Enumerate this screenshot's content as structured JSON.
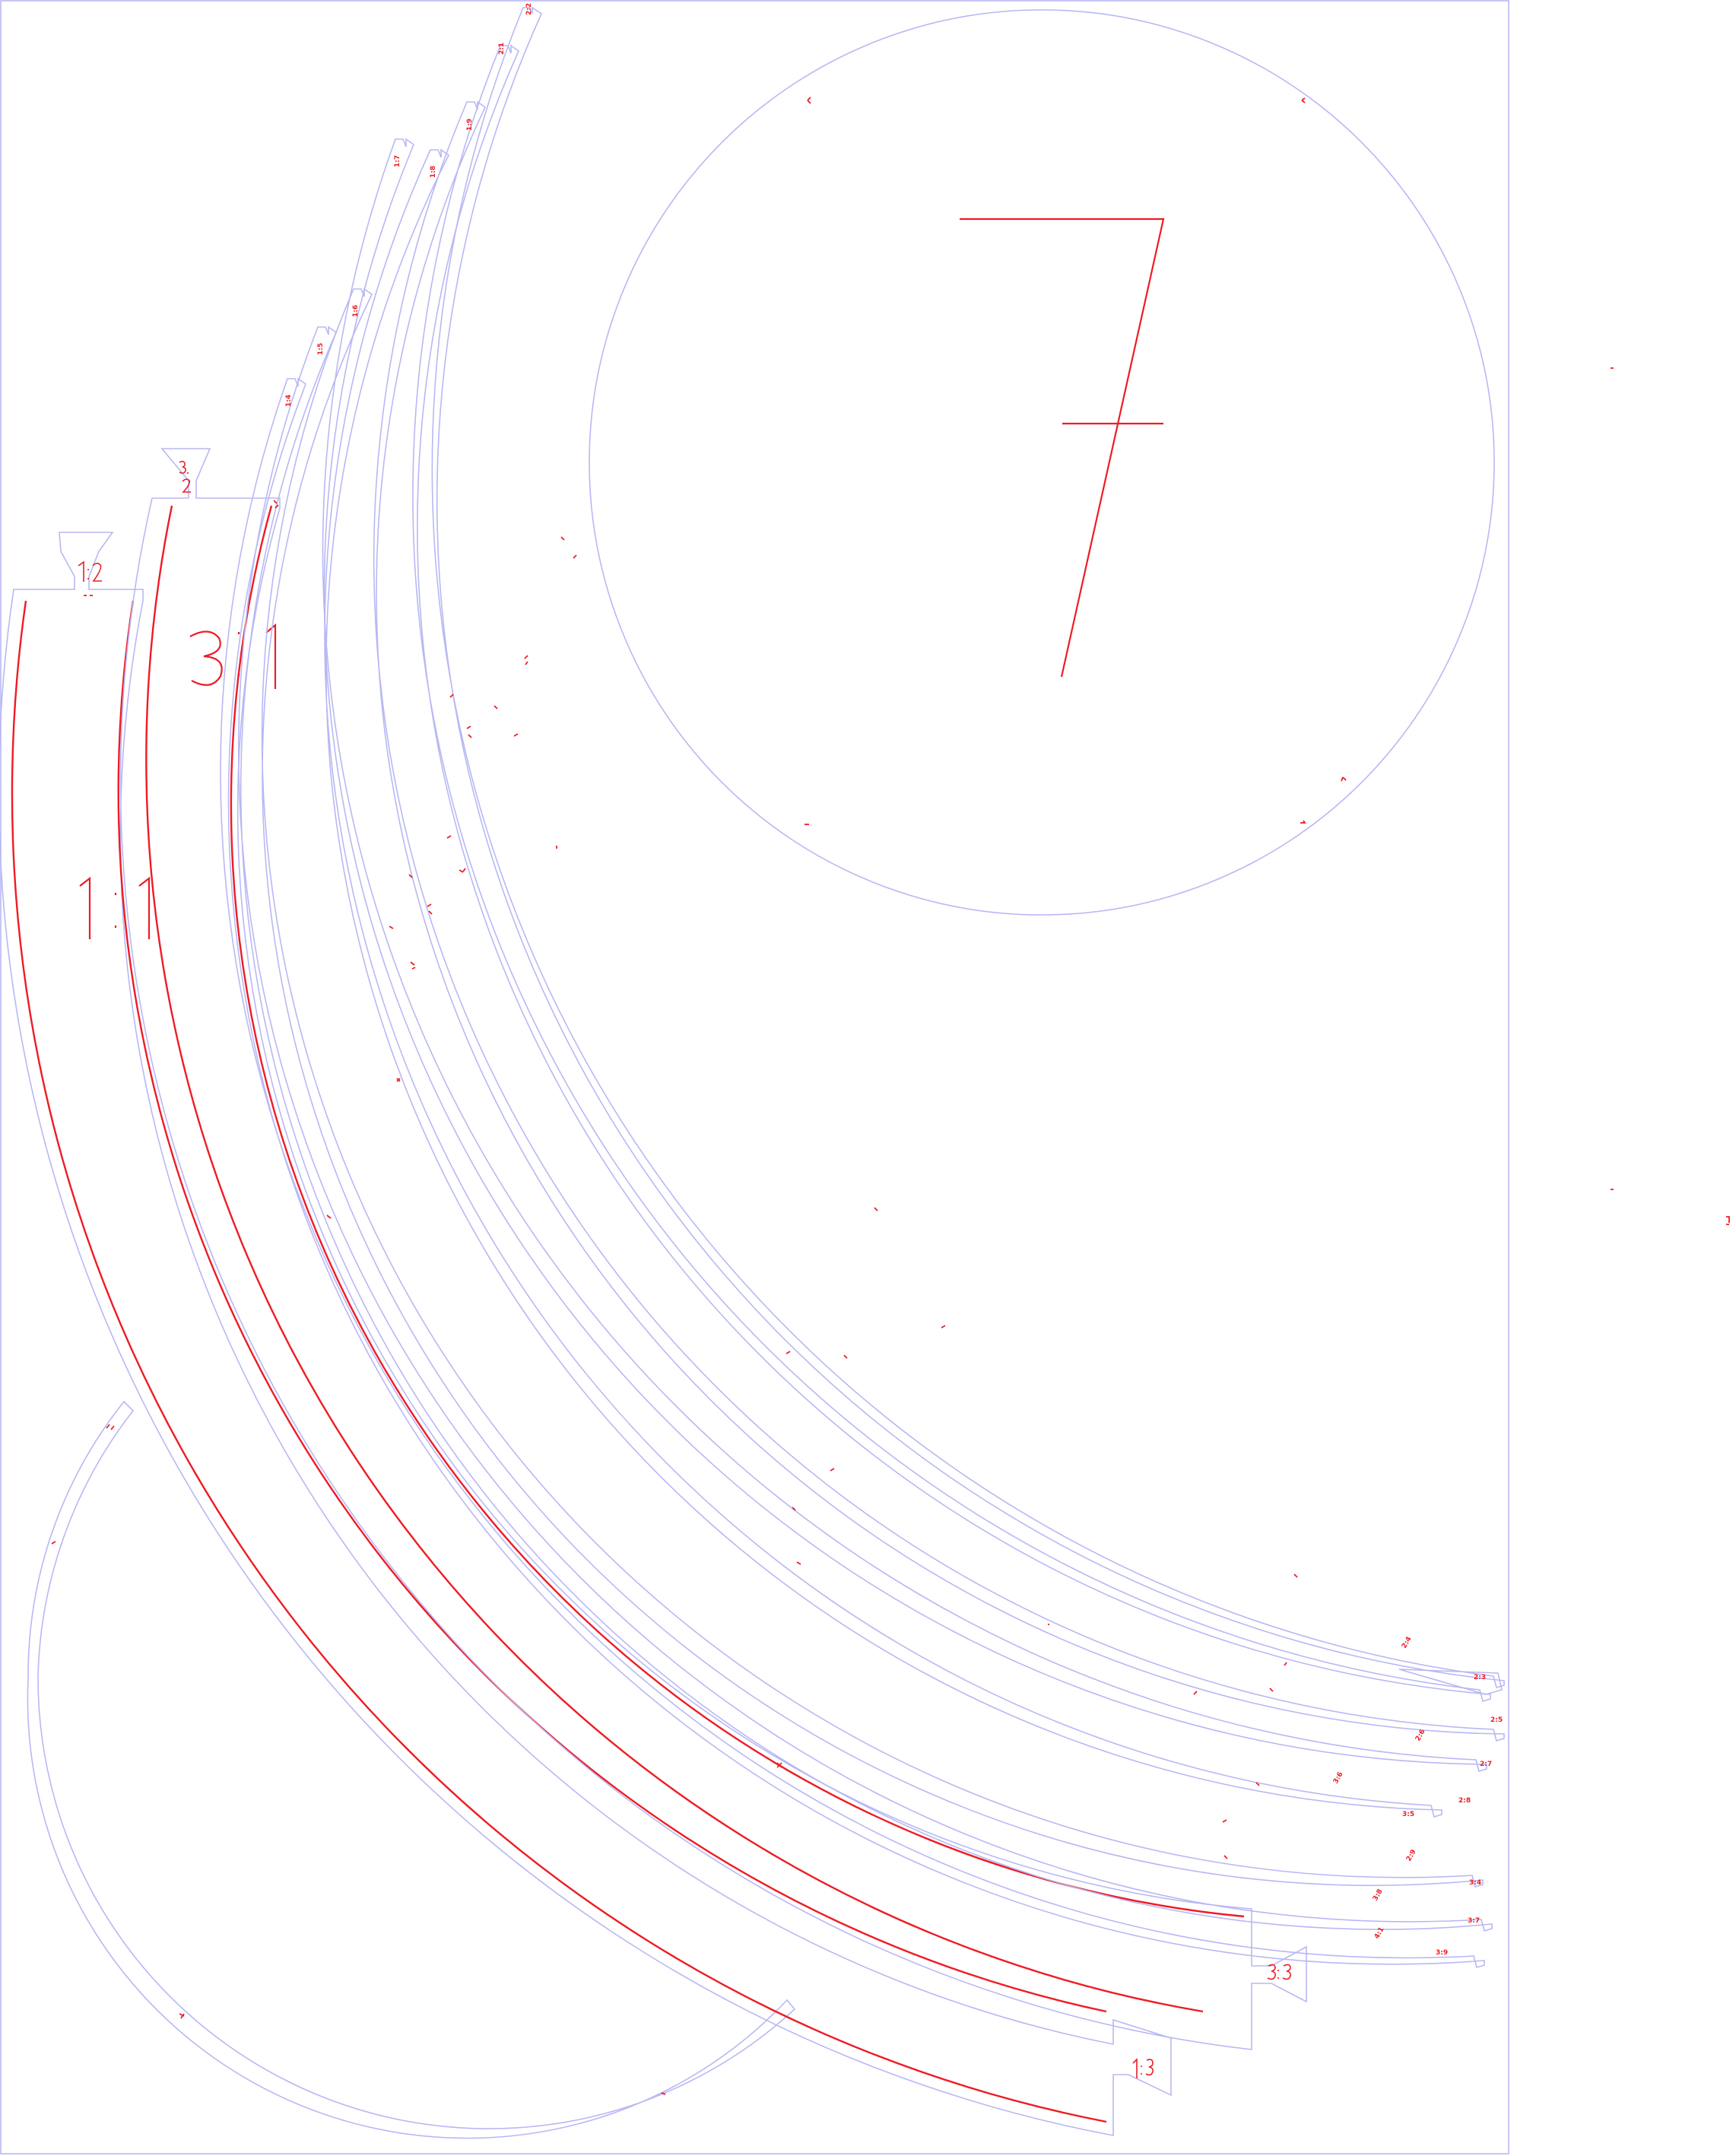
{
  "labels": {
    "ratio_1_1": "1:1",
    "ratio_3_1": "3:1",
    "ratio_1_2": "1:2",
    "ratio_3_2": "3:2",
    "ratio_3_3": "3:3",
    "ratio_1_3": "1:3",
    "disc_number": "7"
  },
  "colors": {
    "cut_line": "#b8b8f4",
    "etch_line": "#ee1c24",
    "background": "#ffffff"
  }
}
